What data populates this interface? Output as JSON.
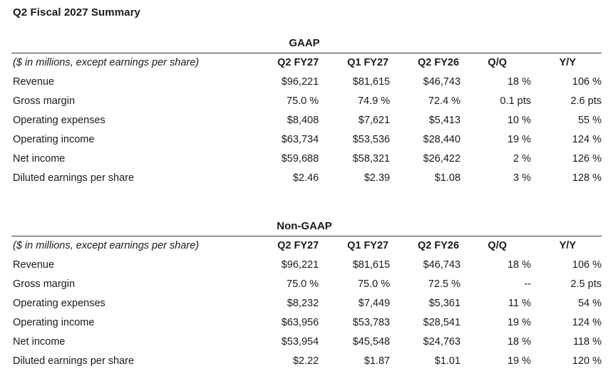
{
  "title": "Q2 Fiscal 2027 Summary",
  "sections": [
    {
      "heading": "GAAP",
      "columns": {
        "label": "($ in millions, except earnings per share)",
        "q2fy27": "Q2 FY27",
        "q1fy27": "Q1 FY27",
        "q2fy26": "Q2 FY26",
        "qq": "Q/Q",
        "yy": "Y/Y"
      },
      "rows": [
        {
          "label": "Revenue",
          "q2fy27": "$96,221",
          "q1fy27": "$81,615",
          "q2fy26": "$46,743",
          "qq": "18 %",
          "yy": "106 %"
        },
        {
          "label": "Gross margin",
          "q2fy27": "75.0 %",
          "q1fy27": "74.9 %",
          "q2fy26": "72.4 %",
          "qq": "0.1 pts",
          "yy": "2.6 pts"
        },
        {
          "label": "Operating expenses",
          "q2fy27": "$8,408",
          "q1fy27": "$7,621",
          "q2fy26": "$5,413",
          "qq": "10 %",
          "yy": "55 %"
        },
        {
          "label": "Operating income",
          "q2fy27": "$63,734",
          "q1fy27": "$53,536",
          "q2fy26": "$28,440",
          "qq": "19 %",
          "yy": "124 %"
        },
        {
          "label": "Net income",
          "q2fy27": "$59,688",
          "q1fy27": "$58,321",
          "q2fy26": "$26,422",
          "qq": "2 %",
          "yy": "126 %"
        },
        {
          "label": "Diluted earnings per share",
          "q2fy27": "$2.46",
          "q1fy27": "$2.39",
          "q2fy26": "$1.08",
          "qq": "3 %",
          "yy": "128 %"
        }
      ]
    },
    {
      "heading": "Non-GAAP",
      "columns": {
        "label": "($ in millions, except earnings per share)",
        "q2fy27": "Q2 FY27",
        "q1fy27": "Q1 FY27",
        "q2fy26": "Q2 FY26",
        "qq": "Q/Q",
        "yy": "Y/Y"
      },
      "rows": [
        {
          "label": "Revenue",
          "q2fy27": "$96,221",
          "q1fy27": "$81,615",
          "q2fy26": "$46,743",
          "qq": "18 %",
          "yy": "106 %"
        },
        {
          "label": "Gross margin",
          "q2fy27": "75.0 %",
          "q1fy27": "75.0 %",
          "q2fy26": "72.5 %",
          "qq": "--",
          "yy": "2.5 pts"
        },
        {
          "label": "Operating expenses",
          "q2fy27": "$8,232",
          "q1fy27": "$7,449",
          "q2fy26": "$5,361",
          "qq": "11 %",
          "yy": "54 %"
        },
        {
          "label": "Operating income",
          "q2fy27": "$63,956",
          "q1fy27": "$53,783",
          "q2fy26": "$28,541",
          "qq": "19 %",
          "yy": "124 %"
        },
        {
          "label": "Net income",
          "q2fy27": "$53,954",
          "q1fy27": "$45,548",
          "q2fy26": "$24,763",
          "qq": "18 %",
          "yy": "118 %"
        },
        {
          "label": "Diluted earnings per share",
          "q2fy27": "$2.22",
          "q1fy27": "$1.87",
          "q2fy26": "$1.01",
          "qq": "19 %",
          "yy": "120 %"
        }
      ]
    }
  ]
}
